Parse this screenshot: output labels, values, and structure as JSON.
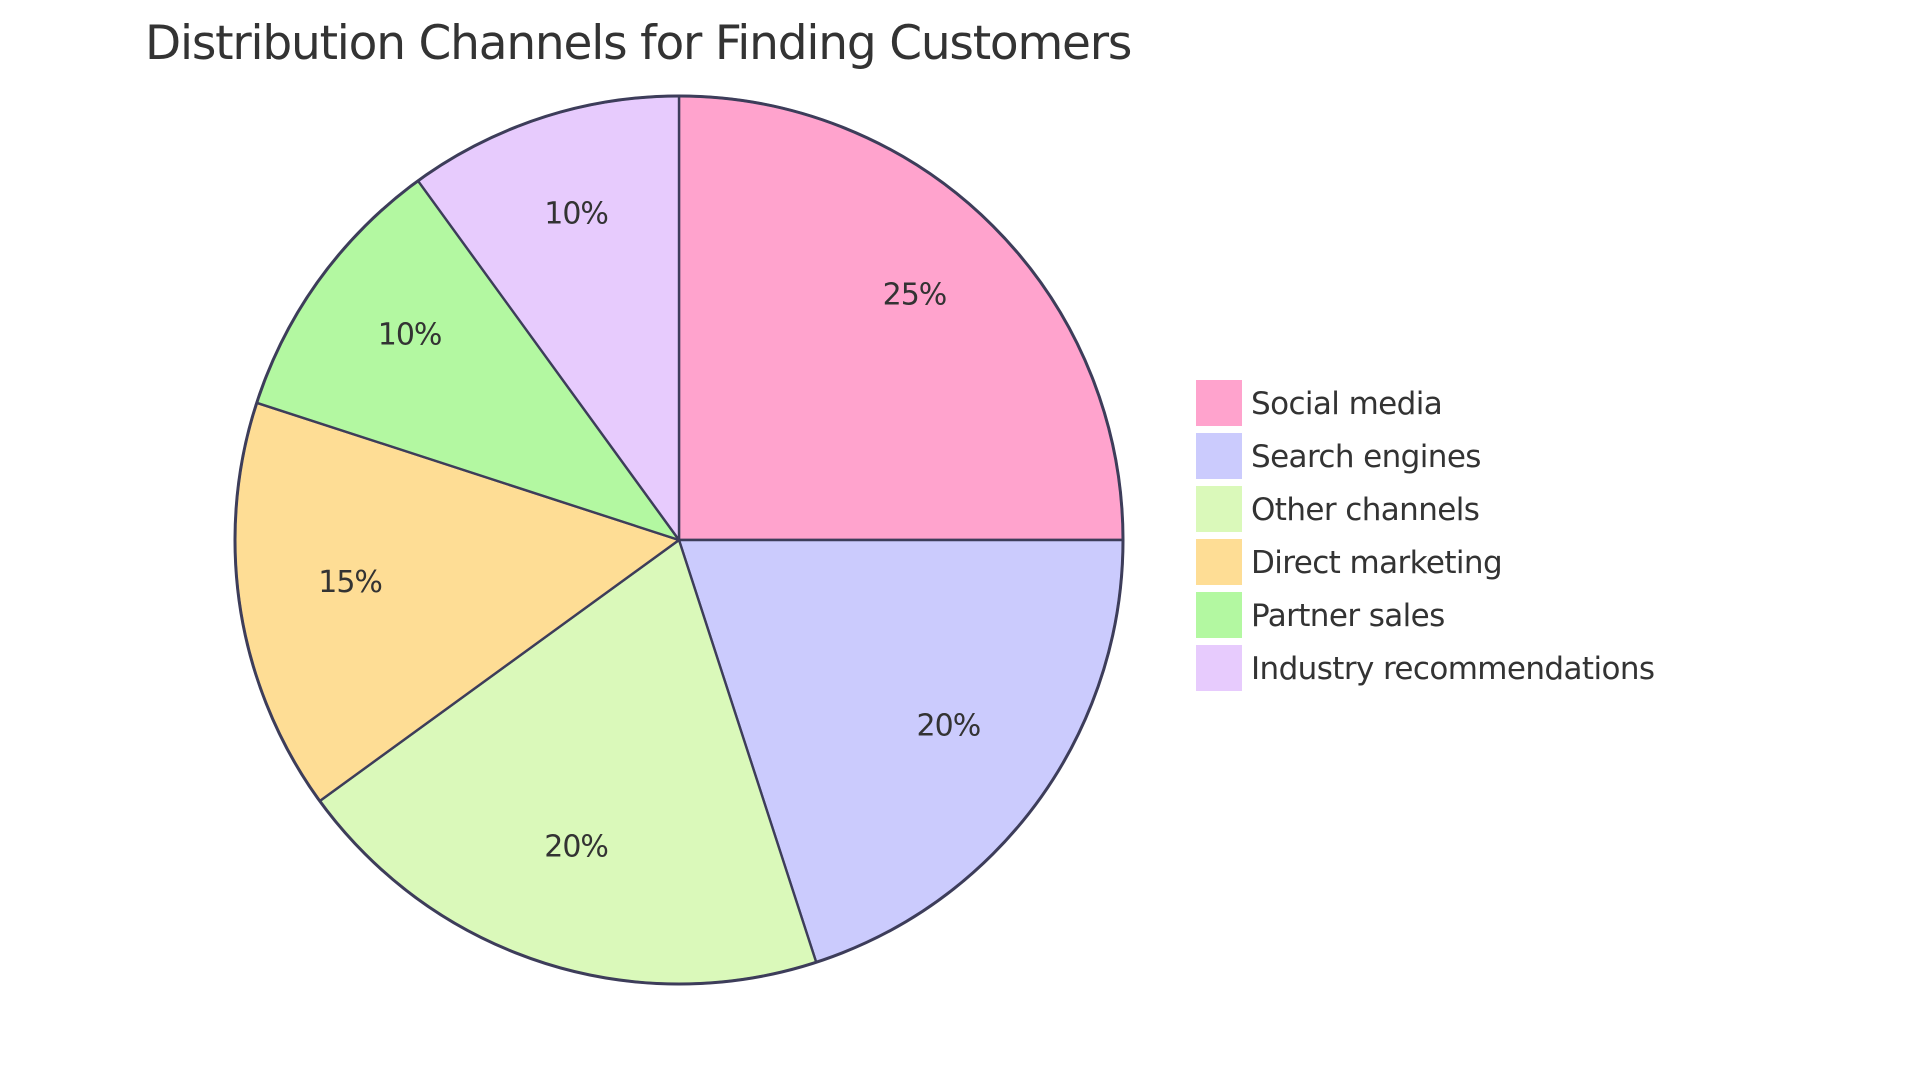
{
  "chart_data": {
    "type": "pie",
    "title": "Distribution Channels for Finding Customers",
    "categories": [
      "Social media",
      "Search engines",
      "Other channels",
      "Direct marketing",
      "Partner sales",
      "Industry recommendations"
    ],
    "values": [
      25,
      20,
      20,
      15,
      10,
      10
    ],
    "labels": [
      "25%",
      "20%",
      "20%",
      "15%",
      "10%",
      "10%"
    ],
    "colors": [
      "#FFA3CD",
      "#CBCBFD",
      "#DAF9BA",
      "#FEDD95",
      "#B3F8A1",
      "#E7CBFD"
    ],
    "start_angle_deg": 0,
    "direction": "clockwise",
    "legend_position": "right"
  },
  "legend": {
    "items": [
      {
        "label": "Social media",
        "color": "#FFA3CD"
      },
      {
        "label": "Search engines",
        "color": "#CBCBFD"
      },
      {
        "label": "Other channels",
        "color": "#DAF9BA"
      },
      {
        "label": "Direct marketing",
        "color": "#FEDD95"
      },
      {
        "label": "Partner sales",
        "color": "#B3F8A1"
      },
      {
        "label": "Industry recommendations",
        "color": "#E7CBFD"
      }
    ]
  }
}
